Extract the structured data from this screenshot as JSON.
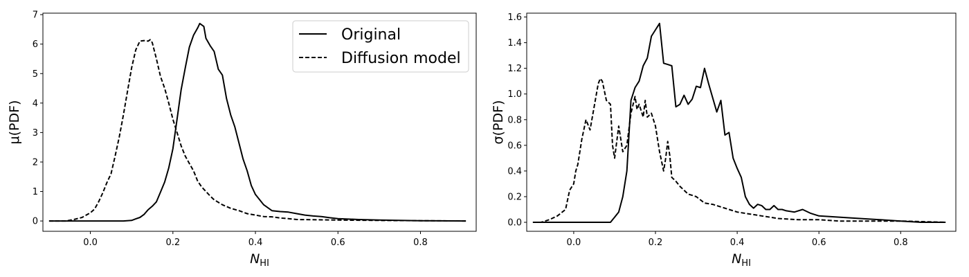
{
  "chart_data": [
    {
      "type": "line",
      "title": "",
      "xlabel_main": "N",
      "xlabel_sub": "HI",
      "ylabel": "μ(PDF)",
      "xlim": [
        -0.115,
        0.935
      ],
      "ylim": [
        -0.35,
        7.05
      ],
      "xticks": [
        0.0,
        0.2,
        0.4,
        0.6,
        0.8
      ],
      "xtick_labels": [
        "0.0",
        "0.2",
        "0.4",
        "0.6",
        "0.8"
      ],
      "yticks": [
        0,
        1,
        2,
        3,
        4,
        5,
        6,
        7
      ],
      "ytick_labels": [
        "0",
        "1",
        "2",
        "3",
        "4",
        "5",
        "6",
        "7"
      ],
      "grid": false,
      "legend": {
        "placement": "top-right",
        "entries": [
          "Original",
          "Diffusion model"
        ]
      },
      "series": [
        {
          "name": "Original",
          "style": "solid",
          "x": [
            -0.1,
            0.0,
            0.08,
            0.1,
            0.11,
            0.12,
            0.13,
            0.14,
            0.15,
            0.16,
            0.17,
            0.18,
            0.19,
            0.2,
            0.21,
            0.22,
            0.23,
            0.24,
            0.25,
            0.26,
            0.265,
            0.275,
            0.28,
            0.29,
            0.3,
            0.31,
            0.32,
            0.33,
            0.34,
            0.35,
            0.36,
            0.37,
            0.38,
            0.39,
            0.4,
            0.42,
            0.44,
            0.46,
            0.48,
            0.5,
            0.52,
            0.54,
            0.56,
            0.58,
            0.6,
            0.65,
            0.7,
            0.8,
            0.91
          ],
          "y": [
            0.0,
            0.0,
            0.0,
            0.02,
            0.07,
            0.12,
            0.22,
            0.38,
            0.5,
            0.65,
            0.98,
            1.32,
            1.8,
            2.45,
            3.45,
            4.45,
            5.2,
            5.9,
            6.3,
            6.55,
            6.7,
            6.6,
            6.2,
            5.95,
            5.75,
            5.15,
            4.95,
            4.15,
            3.6,
            3.2,
            2.65,
            2.1,
            1.7,
            1.2,
            0.9,
            0.55,
            0.35,
            0.32,
            0.3,
            0.25,
            0.2,
            0.17,
            0.15,
            0.11,
            0.08,
            0.05,
            0.03,
            0.01,
            0.0
          ]
        },
        {
          "name": "Diffusion model",
          "style": "dashed",
          "x": [
            -0.1,
            -0.06,
            -0.04,
            -0.02,
            0.0,
            0.01,
            0.02,
            0.03,
            0.04,
            0.05,
            0.06,
            0.07,
            0.08,
            0.09,
            0.1,
            0.11,
            0.12,
            0.13,
            0.14,
            0.145,
            0.15,
            0.16,
            0.17,
            0.18,
            0.19,
            0.2,
            0.21,
            0.22,
            0.23,
            0.24,
            0.25,
            0.26,
            0.27,
            0.28,
            0.29,
            0.3,
            0.32,
            0.34,
            0.36,
            0.38,
            0.4,
            0.42,
            0.44,
            0.46,
            0.48,
            0.5,
            0.55,
            0.6,
            0.7,
            0.8,
            0.91
          ],
          "y": [
            0.0,
            0.0,
            0.05,
            0.12,
            0.28,
            0.4,
            0.65,
            0.95,
            1.3,
            1.6,
            2.2,
            2.85,
            3.6,
            4.4,
            5.2,
            5.8,
            6.1,
            6.12,
            6.1,
            6.15,
            6.05,
            5.5,
            4.9,
            4.5,
            4.0,
            3.45,
            3.0,
            2.55,
            2.2,
            1.95,
            1.7,
            1.35,
            1.15,
            1.0,
            0.85,
            0.72,
            0.55,
            0.43,
            0.35,
            0.25,
            0.2,
            0.15,
            0.14,
            0.1,
            0.08,
            0.05,
            0.04,
            0.03,
            0.02,
            0.01,
            0.0
          ]
        }
      ]
    },
    {
      "type": "line",
      "title": "",
      "xlabel_main": "N",
      "xlabel_sub": "HI",
      "ylabel": "σ(PDF)",
      "xlim": [
        -0.115,
        0.935
      ],
      "ylim": [
        -0.07,
        1.63
      ],
      "xticks": [
        0.0,
        0.2,
        0.4,
        0.6,
        0.8
      ],
      "xtick_labels": [
        "0.0",
        "0.2",
        "0.4",
        "0.6",
        "0.8"
      ],
      "yticks": [
        0.0,
        0.2,
        0.4,
        0.6,
        0.8,
        1.0,
        1.2,
        1.4,
        1.6
      ],
      "ytick_labels": [
        "0.0",
        "0.2",
        "0.4",
        "0.6",
        "0.8",
        "1.0",
        "1.2",
        "1.4",
        "1.6"
      ],
      "grid": false,
      "legend": null,
      "series": [
        {
          "name": "Original",
          "style": "solid",
          "x": [
            -0.1,
            0.0,
            0.09,
            0.1,
            0.11,
            0.12,
            0.13,
            0.14,
            0.15,
            0.16,
            0.17,
            0.18,
            0.19,
            0.2,
            0.21,
            0.22,
            0.23,
            0.24,
            0.25,
            0.26,
            0.27,
            0.28,
            0.29,
            0.3,
            0.31,
            0.32,
            0.33,
            0.34,
            0.35,
            0.36,
            0.37,
            0.38,
            0.39,
            0.4,
            0.41,
            0.42,
            0.43,
            0.44,
            0.45,
            0.46,
            0.47,
            0.48,
            0.49,
            0.5,
            0.51,
            0.52,
            0.54,
            0.56,
            0.58,
            0.6,
            0.65,
            0.7,
            0.75,
            0.8,
            0.85,
            0.91
          ],
          "y": [
            0.0,
            0.0,
            0.0,
            0.04,
            0.08,
            0.2,
            0.4,
            0.95,
            1.05,
            1.1,
            1.22,
            1.28,
            1.45,
            1.5,
            1.55,
            1.24,
            1.23,
            1.22,
            0.9,
            0.92,
            0.99,
            0.92,
            0.96,
            1.06,
            1.05,
            1.2,
            1.08,
            0.97,
            0.86,
            0.95,
            0.68,
            0.7,
            0.5,
            0.42,
            0.35,
            0.2,
            0.14,
            0.11,
            0.14,
            0.13,
            0.1,
            0.1,
            0.13,
            0.1,
            0.1,
            0.09,
            0.08,
            0.1,
            0.07,
            0.05,
            0.04,
            0.03,
            0.02,
            0.01,
            0.0,
            0.0
          ]
        },
        {
          "name": "Diffusion model",
          "style": "dashed",
          "x": [
            -0.1,
            -0.08,
            -0.06,
            -0.04,
            -0.02,
            -0.01,
            0.0,
            0.005,
            0.01,
            0.02,
            0.03,
            0.04,
            0.05,
            0.06,
            0.065,
            0.07,
            0.08,
            0.09,
            0.095,
            0.1,
            0.11,
            0.12,
            0.13,
            0.14,
            0.15,
            0.155,
            0.16,
            0.17,
            0.175,
            0.18,
            0.19,
            0.2,
            0.21,
            0.22,
            0.225,
            0.23,
            0.235,
            0.24,
            0.25,
            0.26,
            0.27,
            0.28,
            0.29,
            0.3,
            0.32,
            0.34,
            0.36,
            0.38,
            0.4,
            0.42,
            0.44,
            0.46,
            0.48,
            0.5,
            0.55,
            0.6,
            0.65,
            0.7,
            0.8,
            0.91
          ],
          "y": [
            0.0,
            0.0,
            0.02,
            0.05,
            0.1,
            0.25,
            0.3,
            0.4,
            0.45,
            0.65,
            0.8,
            0.72,
            0.9,
            1.08,
            1.12,
            1.1,
            0.95,
            0.92,
            0.6,
            0.5,
            0.75,
            0.55,
            0.6,
            0.85,
            0.98,
            0.88,
            0.92,
            0.82,
            0.95,
            0.82,
            0.85,
            0.75,
            0.55,
            0.4,
            0.5,
            0.63,
            0.52,
            0.35,
            0.32,
            0.28,
            0.25,
            0.22,
            0.21,
            0.2,
            0.15,
            0.14,
            0.12,
            0.1,
            0.08,
            0.07,
            0.06,
            0.05,
            0.04,
            0.03,
            0.02,
            0.02,
            0.01,
            0.01,
            0.01,
            0.0
          ]
        }
      ]
    }
  ]
}
